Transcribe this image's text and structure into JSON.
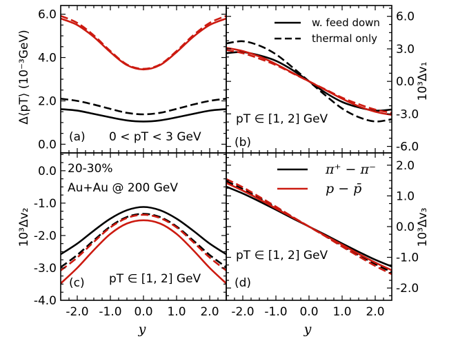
{
  "figure": {
    "x_axis_label": "y",
    "legends": {
      "line_style": [
        {
          "label": "w. feed down",
          "dash": "solid"
        },
        {
          "label": "thermal only",
          "dash": "dashed"
        }
      ],
      "species": [
        {
          "label": "π⁺ − π⁻",
          "color": "#000000"
        },
        {
          "label": "p − p̄",
          "color": "#cc1a10"
        }
      ]
    },
    "annotations": {
      "centrality": "20-30%",
      "system": "Au+Au @ 200 GeV"
    }
  },
  "chart_data": [
    {
      "id": "a",
      "type": "line",
      "panel_label": "(a)",
      "annotation": "0 < pT < 3 GeV",
      "ylabel": "Δ⟨pT⟩ (10⁻³GeV)",
      "xlim": [
        -2.5,
        2.5
      ],
      "ylim": [
        -0.4,
        6.4
      ],
      "xticks": [
        -2.0,
        -1.0,
        0.0,
        1.0,
        2.0
      ],
      "yticks": [
        0.0,
        2.0,
        4.0,
        6.0
      ],
      "ytick_labels": [
        "0.0",
        "2.0",
        "4.0",
        "6.0"
      ],
      "y_axis_side": "left",
      "x": [
        -2.5,
        -2.0,
        -1.5,
        -1.0,
        -0.5,
        0.0,
        0.5,
        1.0,
        1.5,
        2.0,
        2.5
      ],
      "series": [
        {
          "name": "π⁺ − π⁻, w. feed down",
          "color": "#000000",
          "dash": "solid",
          "values": [
            1.62,
            1.55,
            1.4,
            1.24,
            1.1,
            1.05,
            1.1,
            1.24,
            1.4,
            1.55,
            1.62
          ]
        },
        {
          "name": "π⁺ − π⁻, thermal only",
          "color": "#000000",
          "dash": "dashed",
          "values": [
            2.1,
            2.0,
            1.83,
            1.63,
            1.45,
            1.38,
            1.45,
            1.63,
            1.83,
            2.0,
            2.1
          ]
        },
        {
          "name": "p − p̄, w. feed down",
          "color": "#cc1a10",
          "dash": "solid",
          "values": [
            5.8,
            5.5,
            4.95,
            4.25,
            3.65,
            3.45,
            3.65,
            4.25,
            4.95,
            5.5,
            5.8
          ]
        },
        {
          "name": "p − p̄, thermal only",
          "color": "#cc1a10",
          "dash": "dashed",
          "values": [
            5.92,
            5.6,
            5.02,
            4.3,
            3.68,
            3.48,
            3.68,
            4.3,
            5.02,
            5.6,
            5.92
          ]
        }
      ]
    },
    {
      "id": "b",
      "type": "line",
      "panel_label": "(b)",
      "annotation": "pT ∈ [1, 2] GeV",
      "ylabel": "10³Δv₁",
      "xlim": [
        -2.5,
        2.5
      ],
      "ylim": [
        -6.6,
        7.0
      ],
      "xticks": [
        -2.0,
        -1.0,
        0.0,
        1.0,
        2.0
      ],
      "yticks": [
        -6.0,
        -3.0,
        0.0,
        3.0,
        6.0
      ],
      "ytick_labels": [
        "-6.0",
        "-3.0",
        "0.0",
        "3.0",
        "6.0"
      ],
      "y_axis_side": "right",
      "x": [
        -2.5,
        -2.0,
        -1.5,
        -1.0,
        -0.5,
        0.0,
        0.5,
        1.0,
        1.5,
        2.0,
        2.5
      ],
      "series": [
        {
          "name": "π⁺ − π⁻, w. feed down",
          "color": "#000000",
          "dash": "solid",
          "values": [
            2.6,
            2.7,
            2.4,
            1.9,
            1.05,
            0.0,
            -1.05,
            -1.9,
            -2.4,
            -2.7,
            -2.6
          ]
        },
        {
          "name": "π⁺ − π⁻, thermal only",
          "color": "#000000",
          "dash": "dashed",
          "values": [
            3.5,
            3.7,
            3.3,
            2.5,
            1.3,
            0.0,
            -1.3,
            -2.5,
            -3.3,
            -3.7,
            -3.5
          ]
        },
        {
          "name": "p − p̄, w. feed down",
          "color": "#cc1a10",
          "dash": "solid",
          "values": [
            3.1,
            2.8,
            2.3,
            1.6,
            0.8,
            0.0,
            -0.8,
            -1.6,
            -2.3,
            -2.8,
            -3.1
          ]
        },
        {
          "name": "p − p̄, thermal only",
          "color": "#cc1a10",
          "dash": "dashed",
          "values": [
            2.9,
            2.6,
            2.1,
            1.5,
            0.75,
            0.0,
            -0.75,
            -1.5,
            -2.1,
            -2.6,
            -2.9
          ]
        }
      ]
    },
    {
      "id": "c",
      "type": "line",
      "panel_label": "(c)",
      "annotation": "pT ∈ [1, 2] GeV",
      "ylabel": "10³Δv₂",
      "xlim": [
        -2.5,
        2.5
      ],
      "ylim": [
        -4.0,
        0.55
      ],
      "xticks": [
        -2.0,
        -1.0,
        0.0,
        1.0,
        2.0
      ],
      "xtick_labels": [
        "-2.0",
        "-1.0",
        "0.0",
        "1.0",
        "2.0"
      ],
      "yticks": [
        -4.0,
        -3.0,
        -2.0,
        -1.0,
        0.0
      ],
      "ytick_labels": [
        "-4.0",
        "-3.0",
        "-2.0",
        "-1.0",
        "0.0"
      ],
      "y_axis_side": "left",
      "x": [
        -2.5,
        -2.0,
        -1.5,
        -1.0,
        -0.5,
        0.0,
        0.5,
        1.0,
        1.5,
        2.0,
        2.5
      ],
      "series": [
        {
          "name": "π⁺ − π⁻, w. feed down",
          "color": "#000000",
          "dash": "solid",
          "values": [
            -2.58,
            -2.25,
            -1.85,
            -1.48,
            -1.22,
            -1.12,
            -1.22,
            -1.48,
            -1.85,
            -2.25,
            -2.58
          ]
        },
        {
          "name": "π⁺ − π⁻, thermal only",
          "color": "#000000",
          "dash": "dashed",
          "values": [
            -2.98,
            -2.6,
            -2.15,
            -1.72,
            -1.43,
            -1.33,
            -1.43,
            -1.72,
            -2.15,
            -2.6,
            -2.98
          ]
        },
        {
          "name": "p − p̄, w. feed down",
          "color": "#cc1a10",
          "dash": "solid",
          "values": [
            -3.48,
            -3.0,
            -2.45,
            -1.95,
            -1.63,
            -1.53,
            -1.63,
            -1.95,
            -2.45,
            -3.0,
            -3.48
          ]
        },
        {
          "name": "p − p̄, thermal only",
          "color": "#cc1a10",
          "dash": "dashed",
          "values": [
            -3.08,
            -2.68,
            -2.2,
            -1.75,
            -1.46,
            -1.36,
            -1.46,
            -1.75,
            -2.2,
            -2.68,
            -3.08
          ]
        }
      ]
    },
    {
      "id": "d",
      "type": "line",
      "panel_label": "(d)",
      "annotation": "pT ∈ [1, 2] GeV",
      "ylabel": "10³Δv₃",
      "xlim": [
        -2.5,
        2.5
      ],
      "ylim": [
        -2.4,
        2.4
      ],
      "xticks": [
        -2.0,
        -1.0,
        0.0,
        1.0,
        2.0
      ],
      "xtick_labels": [
        "-2.0",
        "-1.0",
        "0.0",
        "1.0",
        "2.0"
      ],
      "yticks": [
        -2.0,
        -1.0,
        0.0,
        1.0,
        2.0
      ],
      "ytick_labels": [
        "-2.0",
        "-1.0",
        "0.0",
        "1.0",
        "2.0"
      ],
      "y_axis_side": "right",
      "x": [
        -2.5,
        -2.0,
        -1.5,
        -1.0,
        -0.5,
        0.0,
        0.5,
        1.0,
        1.5,
        2.0,
        2.5
      ],
      "series": [
        {
          "name": "π⁺ − π⁻, w. feed down",
          "color": "#000000",
          "dash": "solid",
          "values": [
            1.3,
            1.08,
            0.82,
            0.55,
            0.27,
            0.0,
            -0.27,
            -0.55,
            -0.82,
            -1.08,
            -1.3
          ]
        },
        {
          "name": "π⁺ − π⁻, thermal only",
          "color": "#000000",
          "dash": "dashed",
          "values": [
            1.48,
            1.22,
            0.93,
            0.62,
            0.31,
            0.0,
            -0.31,
            -0.62,
            -0.93,
            -1.22,
            -1.48
          ]
        },
        {
          "name": "p − p̄, w. feed down",
          "color": "#cc1a10",
          "dash": "solid",
          "values": [
            1.42,
            1.17,
            0.89,
            0.59,
            0.3,
            0.0,
            -0.3,
            -0.59,
            -0.89,
            -1.17,
            -1.42
          ]
        },
        {
          "name": "p − p̄, thermal only",
          "color": "#cc1a10",
          "dash": "dashed",
          "values": [
            1.55,
            1.28,
            0.97,
            0.65,
            0.32,
            0.0,
            -0.32,
            -0.65,
            -0.97,
            -1.28,
            -1.55
          ]
        }
      ]
    }
  ]
}
